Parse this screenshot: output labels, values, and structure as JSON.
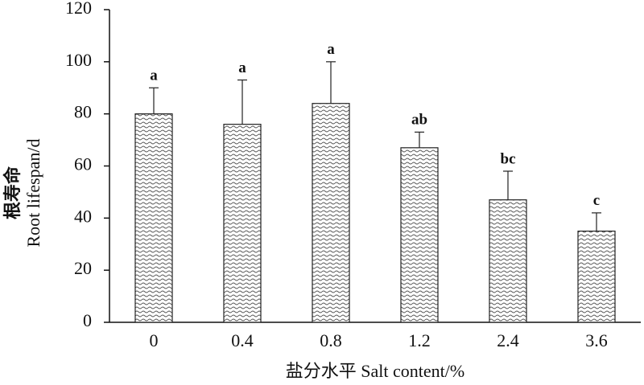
{
  "chart_data": {
    "type": "bar",
    "ylabel": [
      "根寿命",
      "Root lifespan/d"
    ],
    "xlabel": "盐分水平 Salt content/%",
    "categories": [
      "0",
      "0.4",
      "0.8",
      "1.2",
      "2.4",
      "3.6"
    ],
    "values": [
      80,
      76,
      84,
      67,
      47,
      35
    ],
    "errors": [
      10,
      17,
      16,
      6,
      11,
      7
    ],
    "annotations": [
      "a",
      "a",
      "a",
      "ab",
      "bc",
      "c"
    ],
    "color": "#555555",
    "ylim": [
      0,
      120
    ],
    "yticks": [
      0,
      20,
      40,
      60,
      80,
      100,
      120
    ],
    "grid": false
  }
}
